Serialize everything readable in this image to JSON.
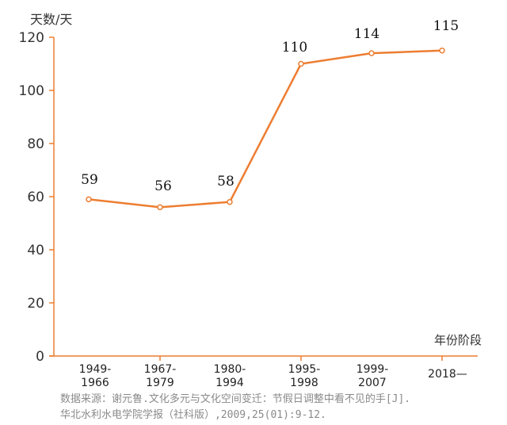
{
  "chart_data": {
    "type": "line",
    "ylabel": "天数/天",
    "xlabel": "年份阶段",
    "categories": [
      "1949-\n1966",
      "1967-\n1979",
      "1980-\n1994",
      "1995-\n1998",
      "1999-\n2007",
      "2018—"
    ],
    "values": [
      59,
      56,
      58,
      110,
      114,
      115
    ],
    "data_labels": [
      "59",
      "56",
      "58",
      "110",
      "114",
      "115"
    ],
    "ylim": [
      0,
      120
    ],
    "yticks": [
      "0",
      "20",
      "40",
      "60",
      "80",
      "100",
      "120"
    ],
    "grid": false,
    "line_color": "#ED7D31",
    "source_line1": "数据来源：谢元鲁.文化多元与文化空间变迁：节假日调整中看不见的手[J].",
    "source_line2": "华北水利水电学院学报（社科版）,2009,25(01):9-12."
  }
}
